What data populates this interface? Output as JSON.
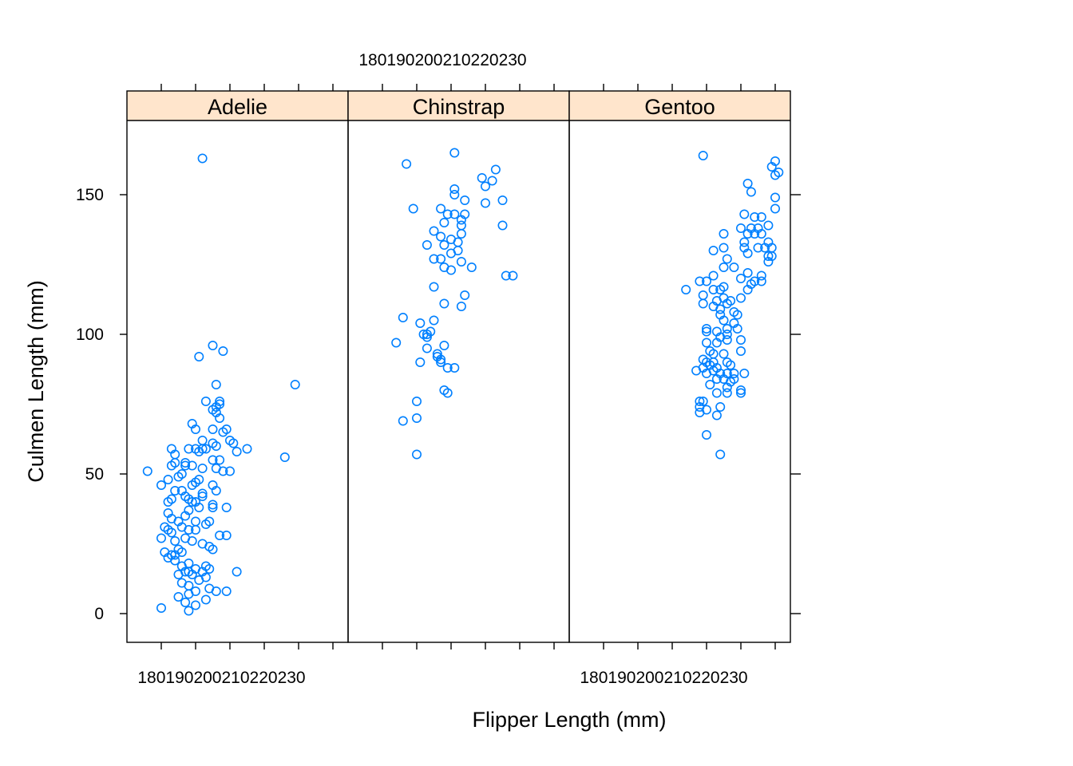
{
  "chart_data": {
    "type": "scatter",
    "xlabel": "Flipper Length (mm)",
    "ylabel": "Culmen Length (mm)",
    "xlim": [
      170,
      235
    ],
    "ylim": [
      -20,
      176
    ],
    "x_ticks": [
      180,
      190,
      200,
      210,
      220,
      230
    ],
    "y_ticks": [
      0,
      50,
      100,
      150
    ],
    "x_tick_label_text": "180190200210220230",
    "y_tick_labels": [
      "0",
      "50",
      "100",
      "150"
    ],
    "grid": false,
    "colors": {
      "point": "#0080ff",
      "strip": "#ffe5cc",
      "axis": "#000000"
    },
    "panels": [
      {
        "name": "Adelie",
        "points": [
          [
            192,
            163
          ],
          [
            195,
            96
          ],
          [
            198,
            94
          ],
          [
            191,
            92
          ],
          [
            219,
            82
          ],
          [
            196,
            82
          ],
          [
            197,
            76
          ],
          [
            193,
            76
          ],
          [
            197,
            75
          ],
          [
            196,
            74
          ],
          [
            195,
            73
          ],
          [
            196,
            72
          ],
          [
            197,
            70
          ],
          [
            189,
            68
          ],
          [
            199,
            66
          ],
          [
            195,
            66
          ],
          [
            198,
            65
          ],
          [
            190,
            66
          ],
          [
            192,
            62
          ],
          [
            200,
            62
          ],
          [
            201,
            61
          ],
          [
            195,
            61
          ],
          [
            196,
            60
          ],
          [
            193,
            59
          ],
          [
            192,
            59
          ],
          [
            205,
            59
          ],
          [
            202,
            58
          ],
          [
            184,
            57
          ],
          [
            190,
            59
          ],
          [
            191,
            58
          ],
          [
            188,
            59
          ],
          [
            183,
            59
          ],
          [
            216,
            56
          ],
          [
            197,
            55
          ],
          [
            195,
            55
          ],
          [
            187,
            54
          ],
          [
            184,
            54
          ],
          [
            183,
            53
          ],
          [
            187,
            53
          ],
          [
            189,
            53
          ],
          [
            192,
            52
          ],
          [
            196,
            52
          ],
          [
            198,
            51
          ],
          [
            200,
            51
          ],
          [
            176,
            51
          ],
          [
            186,
            50
          ],
          [
            185,
            49
          ],
          [
            182,
            48
          ],
          [
            191,
            48
          ],
          [
            190,
            47
          ],
          [
            195,
            46
          ],
          [
            189,
            46
          ],
          [
            180,
            46
          ],
          [
            184,
            44
          ],
          [
            196,
            44
          ],
          [
            186,
            44
          ],
          [
            192,
            43
          ],
          [
            183,
            41
          ],
          [
            188,
            41
          ],
          [
            192,
            42
          ],
          [
            187,
            42
          ],
          [
            182,
            40
          ],
          [
            189,
            40
          ],
          [
            190,
            40
          ],
          [
            195,
            39
          ],
          [
            191,
            38
          ],
          [
            195,
            38
          ],
          [
            199,
            38
          ],
          [
            188,
            37
          ],
          [
            182,
            36
          ],
          [
            187,
            35
          ],
          [
            183,
            34
          ],
          [
            185,
            33
          ],
          [
            190,
            33
          ],
          [
            194,
            33
          ],
          [
            193,
            32
          ],
          [
            181,
            31
          ],
          [
            186,
            31
          ],
          [
            188,
            30
          ],
          [
            182,
            30
          ],
          [
            190,
            30
          ],
          [
            183,
            29
          ],
          [
            197,
            28
          ],
          [
            199,
            28
          ],
          [
            187,
            27
          ],
          [
            180,
            27
          ],
          [
            184,
            26
          ],
          [
            189,
            26
          ],
          [
            192,
            25
          ],
          [
            194,
            24
          ],
          [
            185,
            23
          ],
          [
            195,
            23
          ],
          [
            181,
            22
          ],
          [
            186,
            22
          ],
          [
            184,
            21
          ],
          [
            183,
            21
          ],
          [
            182,
            20
          ],
          [
            184,
            19
          ],
          [
            188,
            18
          ],
          [
            193,
            17
          ],
          [
            186,
            17
          ],
          [
            190,
            16
          ],
          [
            194,
            16
          ],
          [
            187,
            15
          ],
          [
            188,
            15
          ],
          [
            192,
            15
          ],
          [
            202,
            15
          ],
          [
            185,
            14
          ],
          [
            189,
            14
          ],
          [
            193,
            13
          ],
          [
            191,
            12
          ],
          [
            186,
            11
          ],
          [
            188,
            10
          ],
          [
            194,
            9
          ],
          [
            190,
            8
          ],
          [
            196,
            8
          ],
          [
            199,
            8
          ],
          [
            188,
            7
          ],
          [
            185,
            6
          ],
          [
            193,
            5
          ],
          [
            187,
            4
          ],
          [
            190,
            3
          ],
          [
            180,
            2
          ],
          [
            188,
            1
          ]
        ]
      },
      {
        "name": "Chinstrap",
        "points": [
          [
            201,
            165
          ],
          [
            187,
            161
          ],
          [
            213,
            159
          ],
          [
            209,
            156
          ],
          [
            212,
            155
          ],
          [
            210,
            153
          ],
          [
            201,
            152
          ],
          [
            201,
            150
          ],
          [
            215,
            148
          ],
          [
            204,
            148
          ],
          [
            210,
            147
          ],
          [
            197,
            145
          ],
          [
            189,
            145
          ],
          [
            199,
            143
          ],
          [
            204,
            143
          ],
          [
            201,
            143
          ],
          [
            203,
            141
          ],
          [
            198,
            140
          ],
          [
            203,
            139
          ],
          [
            215,
            139
          ],
          [
            195,
            137
          ],
          [
            203,
            136
          ],
          [
            197,
            135
          ],
          [
            200,
            134
          ],
          [
            202,
            133
          ],
          [
            198,
            132
          ],
          [
            193,
            132
          ],
          [
            202,
            130
          ],
          [
            200,
            129
          ],
          [
            195,
            127
          ],
          [
            197,
            127
          ],
          [
            203,
            126
          ],
          [
            198,
            124
          ],
          [
            206,
            124
          ],
          [
            200,
            123
          ],
          [
            216,
            121
          ],
          [
            218,
            121
          ],
          [
            195,
            117
          ],
          [
            204,
            114
          ],
          [
            198,
            111
          ],
          [
            203,
            110
          ],
          [
            186,
            106
          ],
          [
            191,
            104
          ],
          [
            195,
            105
          ],
          [
            194,
            101
          ],
          [
            193,
            100
          ],
          [
            192,
            100
          ],
          [
            193,
            99
          ],
          [
            184,
            97
          ],
          [
            198,
            96
          ],
          [
            193,
            95
          ],
          [
            196,
            93
          ],
          [
            196,
            92
          ],
          [
            197,
            91
          ],
          [
            197,
            90
          ],
          [
            191,
            90
          ],
          [
            199,
            88
          ],
          [
            201,
            88
          ],
          [
            198,
            80
          ],
          [
            199,
            79
          ],
          [
            190,
            76
          ],
          [
            186,
            69
          ],
          [
            190,
            70
          ],
          [
            190,
            57
          ]
        ]
      },
      {
        "name": "Gentoo",
        "points": [
          [
            209,
            164
          ],
          [
            230,
            162
          ],
          [
            229,
            160
          ],
          [
            231,
            158
          ],
          [
            230,
            157
          ],
          [
            222,
            154
          ],
          [
            223,
            151
          ],
          [
            230,
            149
          ],
          [
            230,
            145
          ],
          [
            221,
            143
          ],
          [
            224,
            142
          ],
          [
            226,
            142
          ],
          [
            220,
            138
          ],
          [
            223,
            138
          ],
          [
            225,
            138
          ],
          [
            224,
            136
          ],
          [
            226,
            136
          ],
          [
            228,
            139
          ],
          [
            222,
            136
          ],
          [
            215,
            136
          ],
          [
            221,
            133
          ],
          [
            228,
            133
          ],
          [
            225,
            131
          ],
          [
            227,
            131
          ],
          [
            229,
            131
          ],
          [
            221,
            131
          ],
          [
            215,
            131
          ],
          [
            212,
            130
          ],
          [
            222,
            129
          ],
          [
            229,
            128
          ],
          [
            228,
            128
          ],
          [
            216,
            127
          ],
          [
            228,
            126
          ],
          [
            218,
            124
          ],
          [
            215,
            124
          ],
          [
            222,
            122
          ],
          [
            226,
            121
          ],
          [
            226,
            119
          ],
          [
            224,
            119
          ],
          [
            220,
            120
          ],
          [
            223,
            118
          ],
          [
            212,
            121
          ],
          [
            208,
            119
          ],
          [
            210,
            119
          ],
          [
            215,
            117
          ],
          [
            214,
            116
          ],
          [
            222,
            116
          ],
          [
            204,
            116
          ],
          [
            212,
            116
          ],
          [
            209,
            114
          ],
          [
            209,
            111
          ],
          [
            215,
            113
          ],
          [
            217,
            112
          ],
          [
            220,
            113
          ],
          [
            213,
            112
          ],
          [
            216,
            111
          ],
          [
            212,
            110
          ],
          [
            214,
            109
          ],
          [
            218,
            108
          ],
          [
            214,
            107
          ],
          [
            219,
            107
          ],
          [
            215,
            105
          ],
          [
            218,
            104
          ],
          [
            216,
            102
          ],
          [
            213,
            101
          ],
          [
            219,
            102
          ],
          [
            210,
            102
          ],
          [
            210,
            101
          ],
          [
            216,
            100
          ],
          [
            214,
            99
          ],
          [
            213,
            97
          ],
          [
            216,
            98
          ],
          [
            220,
            98
          ],
          [
            210,
            97
          ],
          [
            211,
            94
          ],
          [
            212,
            93
          ],
          [
            215,
            93
          ],
          [
            220,
            94
          ],
          [
            209,
            91
          ],
          [
            210,
            90
          ],
          [
            212,
            90
          ],
          [
            216,
            90
          ],
          [
            217,
            89
          ],
          [
            211,
            89
          ],
          [
            209,
            88
          ],
          [
            213,
            88
          ],
          [
            210,
            86
          ],
          [
            212,
            87
          ],
          [
            214,
            86
          ],
          [
            216,
            86
          ],
          [
            218,
            86
          ],
          [
            207,
            87
          ],
          [
            221,
            86
          ],
          [
            213,
            84
          ],
          [
            215,
            84
          ],
          [
            218,
            84
          ],
          [
            217,
            83
          ],
          [
            211,
            82
          ],
          [
            216,
            81
          ],
          [
            220,
            80
          ],
          [
            216,
            79
          ],
          [
            213,
            79
          ],
          [
            220,
            79
          ],
          [
            208,
            76
          ],
          [
            209,
            76
          ],
          [
            208,
            74
          ],
          [
            214,
            74
          ],
          [
            210,
            73
          ],
          [
            208,
            72
          ],
          [
            213,
            71
          ],
          [
            210,
            64
          ],
          [
            214,
            57
          ]
        ]
      }
    ]
  }
}
